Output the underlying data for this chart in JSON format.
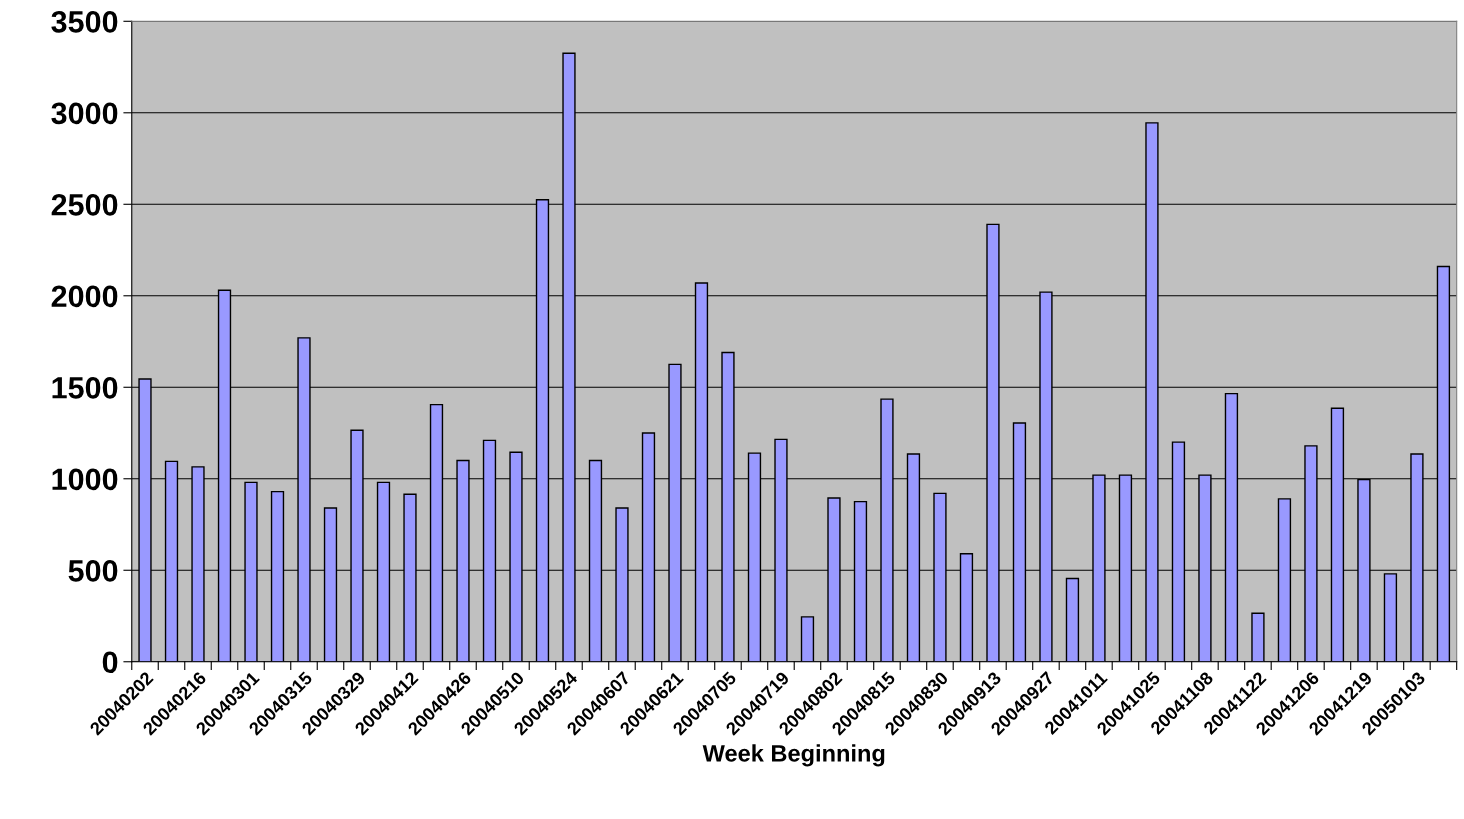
{
  "chart_data": {
    "type": "bar",
    "xlabel": "Week Beginning",
    "categories": [
      "20040202",
      null,
      "20040216",
      null,
      "20040301",
      null,
      "20040315",
      null,
      "20040329",
      null,
      "20040412",
      null,
      "20040426",
      null,
      "20040510",
      null,
      "20040524",
      null,
      "20040607",
      null,
      "20040621",
      null,
      "20040705",
      null,
      "20040719",
      null,
      "20040802",
      null,
      "20040815",
      null,
      "20040830",
      null,
      "20040913",
      null,
      "20040927",
      null,
      "20041011",
      null,
      "20041025",
      null,
      "20041108",
      null,
      "20041122",
      null,
      "20041206",
      null,
      "20041219",
      null,
      "20050103",
      null
    ],
    "values": [
      1545,
      1095,
      1065,
      2030,
      980,
      930,
      1770,
      840,
      1265,
      980,
      915,
      1405,
      1100,
      1210,
      1145,
      2525,
      3325,
      1100,
      840,
      1250,
      1625,
      2070,
      1690,
      1140,
      1215,
      245,
      895,
      875,
      1435,
      1135,
      920,
      590,
      2390,
      1305,
      2020,
      455,
      1020,
      1020,
      2945,
      1200,
      1020,
      1465,
      265,
      890,
      1180,
      1385,
      995,
      480,
      1135,
      2160
    ],
    "color": "#9999ff",
    "ylim": [
      0,
      3500
    ],
    "yticks": [
      0,
      500,
      1000,
      1500,
      2000,
      2500,
      3000,
      3500
    ],
    "grid": "y"
  }
}
